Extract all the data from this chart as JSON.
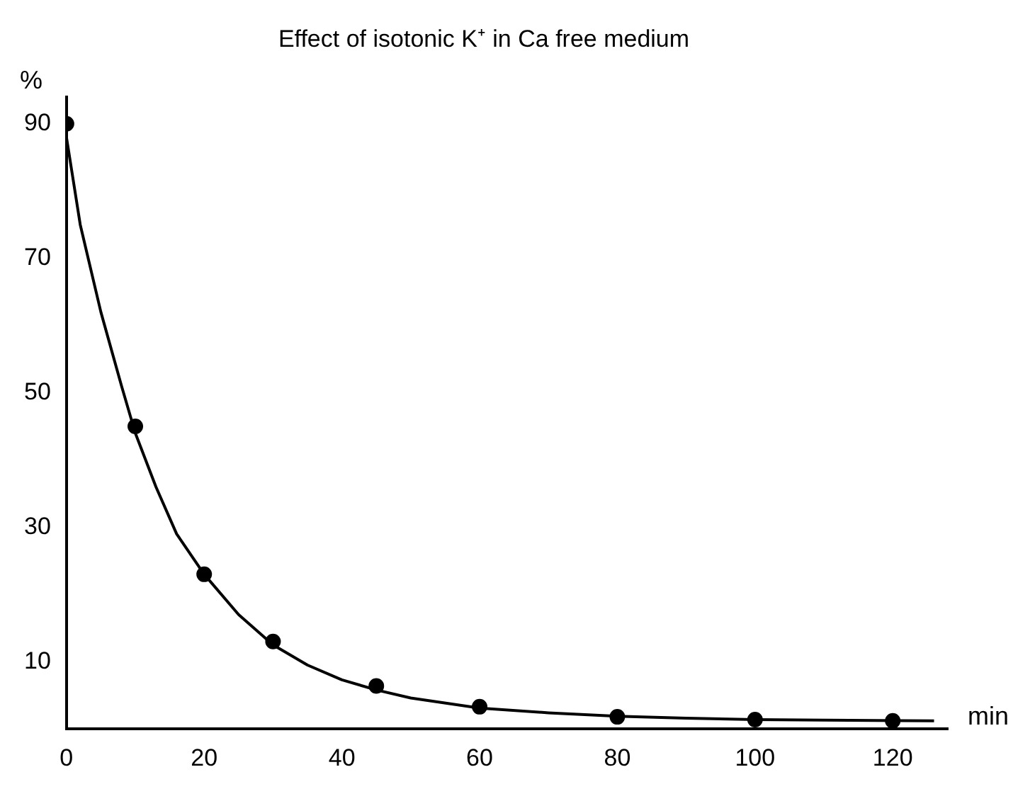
{
  "chart_data": {
    "type": "scatter",
    "title": "Effect of isotonic K⁺ in Ca free medium",
    "xlabel": "min",
    "ylabel": "%",
    "xlim": [
      0,
      128
    ],
    "xticks": [
      0,
      20,
      40,
      60,
      80,
      100,
      120
    ],
    "ylim": [
      0,
      94
    ],
    "yticks": [
      10,
      30,
      50,
      70,
      90
    ],
    "grid": false,
    "legend": false,
    "series": [
      {
        "type": "scatter",
        "color": "#000000",
        "marker": "circle",
        "x": [
          0,
          10,
          20,
          30,
          45,
          60,
          80,
          100,
          120
        ],
        "values": [
          90,
          45,
          23,
          13,
          6.4,
          3.3,
          1.8,
          1.4,
          1.2
        ]
      },
      {
        "type": "line",
        "color": "#000000",
        "marker": "none",
        "line_style": "solid",
        "x": [
          0,
          2,
          5,
          8,
          10,
          13,
          16,
          20,
          25,
          30,
          35,
          40,
          45,
          50,
          60,
          70,
          80,
          90,
          100,
          110,
          126
        ],
        "values": [
          88,
          75,
          62,
          51,
          44,
          36,
          29,
          23,
          17,
          12.5,
          9.5,
          7.3,
          5.8,
          4.6,
          3.1,
          2.4,
          1.9,
          1.6,
          1.4,
          1.3,
          1.2
        ]
      }
    ]
  }
}
